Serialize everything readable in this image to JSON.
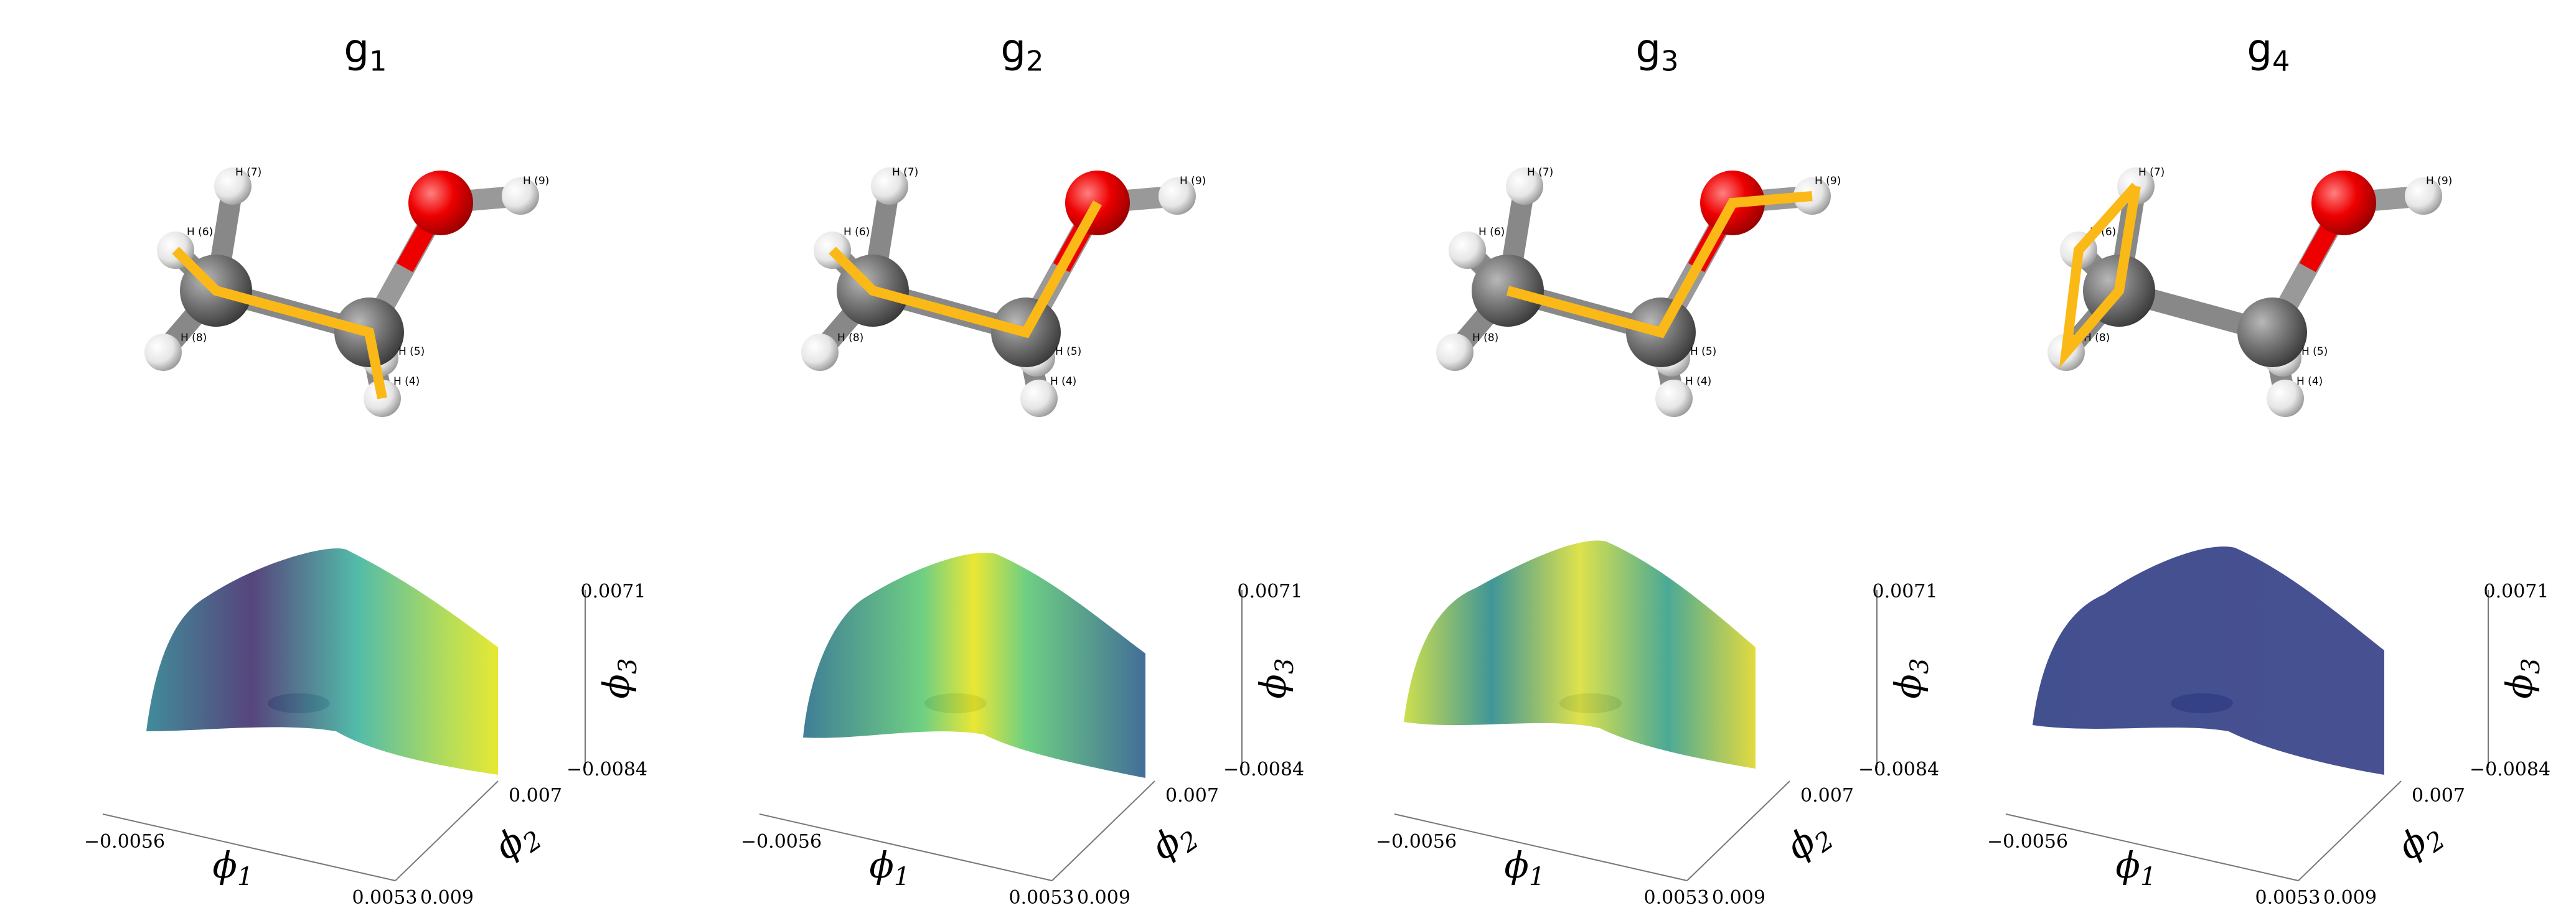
{
  "panels": [
    {
      "title": {
        "base": "g",
        "sub": "1"
      }
    },
    {
      "title": {
        "base": "g",
        "sub": "2"
      }
    },
    {
      "title": {
        "base": "g",
        "sub": "3"
      }
    },
    {
      "title": {
        "base": "g",
        "sub": "4"
      }
    }
  ],
  "atom_labels": [
    "H (7)",
    "H (6)",
    "H (8)",
    "H (5)",
    "H (4)",
    "H (9)"
  ],
  "axes": {
    "x": {
      "symbol": "ϕ",
      "sub": "1",
      "min_label": "−0.0056",
      "max_label": "0.0053"
    },
    "y": {
      "symbol": "ϕ",
      "sub": "2",
      "min_label": "0.009",
      "max_label": "0.007"
    },
    "z": {
      "symbol": "ϕ",
      "sub": "3",
      "min_label": "−0.0084",
      "max_label": "0.0071"
    }
  }
}
